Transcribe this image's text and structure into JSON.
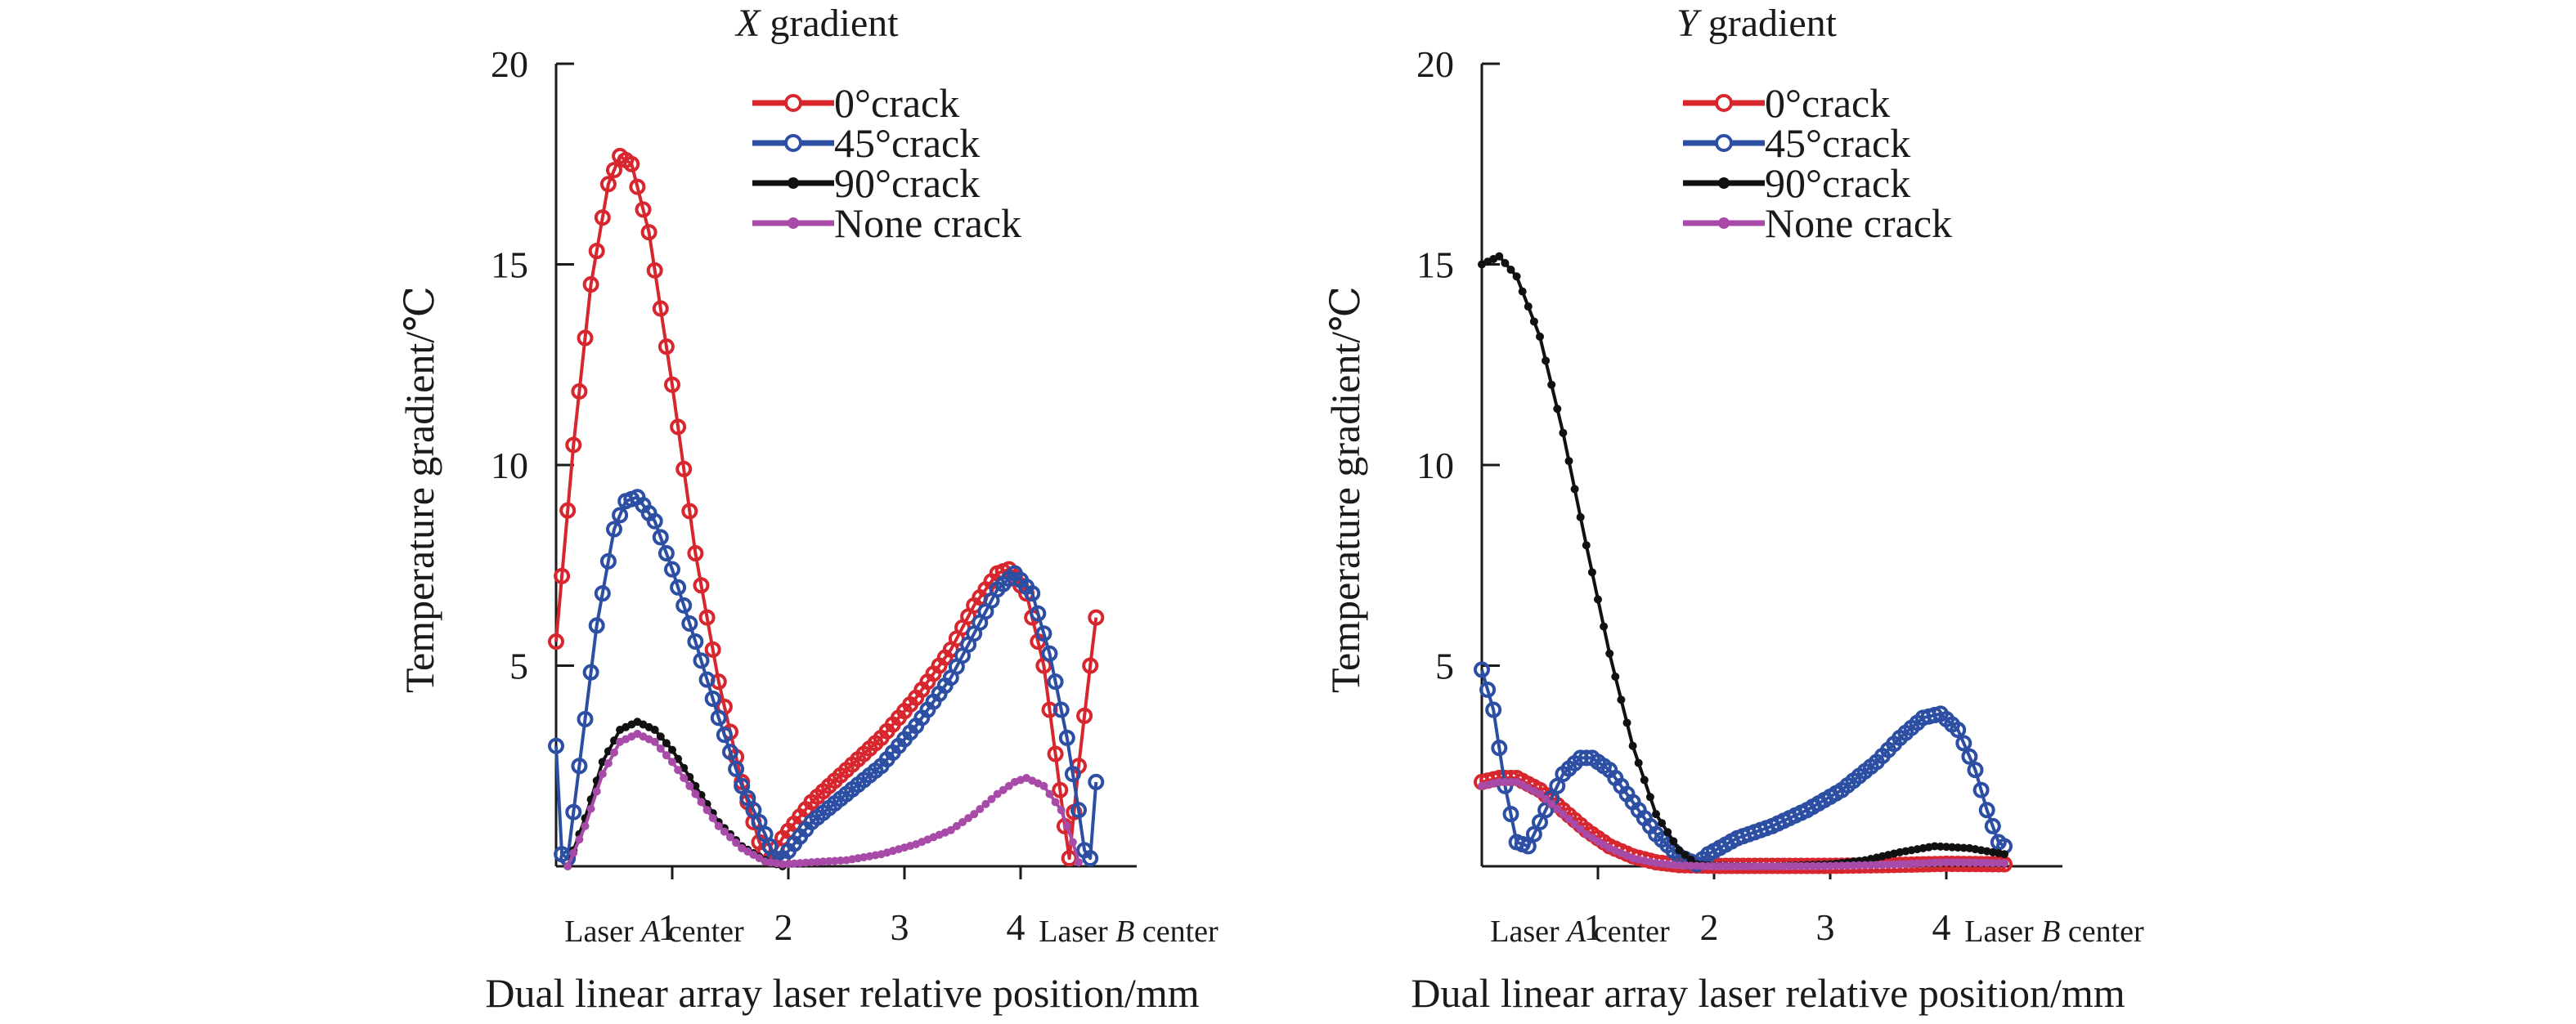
{
  "chart_data": [
    {
      "type": "line",
      "title_var": "X",
      "title_rest": " gradient",
      "xlabel": "Dual linear array laser relative position/mm",
      "ylabel": "Temperature gradient/℃",
      "xlim": [
        -0.05,
        5.0
      ],
      "ylim": [
        0,
        20
      ],
      "yticks": [
        5,
        10,
        15,
        20
      ],
      "xticks": [
        1,
        2,
        3,
        4
      ],
      "x_start_label": {
        "pre": "Laser ",
        "var": "A",
        "post": " center"
      },
      "x_end_label": {
        "pre": "Laser ",
        "var": "B",
        "post": " center"
      },
      "legend": [
        "0°crack",
        "45°crack",
        "90°crack",
        "None crack"
      ],
      "series": [
        {
          "name": "0°crack",
          "color": "#d7262e",
          "marker": "open-circle",
          "points": [
            [
              0,
              5.6
            ],
            [
              0.15,
              10.5
            ],
            [
              0.3,
              14.5
            ],
            [
              0.45,
              17.0
            ],
            [
              0.55,
              17.7
            ],
            [
              0.65,
              17.5
            ],
            [
              0.8,
              15.8
            ],
            [
              1.0,
              12.0
            ],
            [
              1.2,
              7.8
            ],
            [
              1.4,
              4.6
            ],
            [
              1.6,
              2.1
            ],
            [
              1.75,
              0.6
            ],
            [
              1.85,
              0.2
            ],
            [
              1.95,
              0.7
            ],
            [
              2.2,
              1.6
            ],
            [
              2.5,
              2.4
            ],
            [
              2.8,
              3.2
            ],
            [
              3.1,
              4.2
            ],
            [
              3.4,
              5.4
            ],
            [
              3.6,
              6.5
            ],
            [
              3.8,
              7.3
            ],
            [
              3.9,
              7.4
            ],
            [
              4.05,
              6.8
            ],
            [
              4.2,
              5.0
            ],
            [
              4.3,
              2.8
            ],
            [
              4.38,
              1.0
            ],
            [
              4.42,
              0.2
            ],
            [
              4.5,
              2.5
            ],
            [
              4.6,
              5.0
            ],
            [
              4.65,
              6.2
            ]
          ]
        },
        {
          "name": "45°crack",
          "color": "#2c4ea3",
          "marker": "open-circle",
          "points": [
            [
              0,
              3.0
            ],
            [
              0.05,
              0.3
            ],
            [
              0.1,
              0.2
            ],
            [
              0.2,
              2.5
            ],
            [
              0.35,
              6.0
            ],
            [
              0.5,
              8.4
            ],
            [
              0.6,
              9.1
            ],
            [
              0.7,
              9.2
            ],
            [
              0.85,
              8.6
            ],
            [
              1.0,
              7.4
            ],
            [
              1.2,
              5.6
            ],
            [
              1.4,
              3.7
            ],
            [
              1.6,
              2.0
            ],
            [
              1.8,
              0.8
            ],
            [
              1.88,
              0.2
            ],
            [
              1.95,
              0.2
            ],
            [
              2.2,
              1.1
            ],
            [
              2.5,
              1.8
            ],
            [
              2.8,
              2.5
            ],
            [
              3.1,
              3.5
            ],
            [
              3.4,
              4.7
            ],
            [
              3.6,
              5.8
            ],
            [
              3.8,
              6.9
            ],
            [
              3.95,
              7.3
            ],
            [
              4.1,
              6.8
            ],
            [
              4.25,
              5.3
            ],
            [
              4.4,
              3.2
            ],
            [
              4.5,
              1.4
            ],
            [
              4.55,
              0.4
            ],
            [
              4.6,
              0.2
            ],
            [
              4.65,
              2.1
            ]
          ]
        },
        {
          "name": "90°crack",
          "color": "#111111",
          "marker": "dot",
          "points": [
            [
              0.1,
              0
            ],
            [
              0.25,
              1.2
            ],
            [
              0.4,
              2.6
            ],
            [
              0.55,
              3.4
            ],
            [
              0.7,
              3.6
            ],
            [
              0.85,
              3.4
            ],
            [
              1.0,
              2.9
            ],
            [
              1.2,
              2.0
            ],
            [
              1.4,
              1.1
            ],
            [
              1.6,
              0.5
            ],
            [
              1.8,
              0.15
            ],
            [
              1.95,
              0
            ]
          ]
        },
        {
          "name": "None crack",
          "color": "#a84ba8",
          "marker": "dot",
          "points": [
            [
              0.1,
              0
            ],
            [
              0.25,
              1.0
            ],
            [
              0.4,
              2.3
            ],
            [
              0.55,
              3.1
            ],
            [
              0.7,
              3.3
            ],
            [
              0.85,
              3.1
            ],
            [
              1.0,
              2.6
            ],
            [
              1.2,
              1.8
            ],
            [
              1.4,
              1.0
            ],
            [
              1.6,
              0.45
            ],
            [
              1.8,
              0.12
            ],
            [
              1.95,
              0.05
            ],
            [
              2.2,
              0.1
            ],
            [
              2.5,
              0.15
            ],
            [
              2.8,
              0.3
            ],
            [
              3.1,
              0.55
            ],
            [
              3.4,
              0.9
            ],
            [
              3.6,
              1.3
            ],
            [
              3.8,
              1.8
            ],
            [
              3.95,
              2.1
            ],
            [
              4.05,
              2.2
            ],
            [
              4.2,
              2.0
            ],
            [
              4.35,
              1.4
            ],
            [
              4.45,
              0.6
            ],
            [
              4.5,
              0.1
            ]
          ]
        }
      ]
    },
    {
      "type": "line",
      "title_var": "Y",
      "title_rest": " gradient",
      "xlabel": "Dual linear array laser relative position/mm",
      "ylabel": "Temperature gradient/℃",
      "xlim": [
        -0.05,
        5.0
      ],
      "ylim": [
        0,
        20
      ],
      "yticks": [
        5,
        10,
        15,
        20
      ],
      "xticks": [
        1,
        2,
        3,
        4
      ],
      "x_start_label": {
        "pre": "Laser ",
        "var": "A",
        "post": " center"
      },
      "x_end_label": {
        "pre": "Laser ",
        "var": "B",
        "post": " center"
      },
      "legend": [
        "0°crack",
        "45°crack",
        "90°crack",
        "None crack"
      ],
      "series": [
        {
          "name": "0°crack",
          "color": "#d7262e",
          "marker": "open-circle",
          "points": [
            [
              0,
              2.1
            ],
            [
              0.15,
              2.2
            ],
            [
              0.3,
              2.2
            ],
            [
              0.5,
              1.9
            ],
            [
              0.7,
              1.4
            ],
            [
              0.9,
              0.9
            ],
            [
              1.1,
              0.5
            ],
            [
              1.3,
              0.25
            ],
            [
              1.5,
              0.1
            ],
            [
              1.7,
              0.03
            ],
            [
              2.0,
              0.01
            ],
            [
              2.5,
              0.01
            ],
            [
              3.0,
              0.01
            ],
            [
              3.5,
              0.03
            ],
            [
              4.0,
              0.06
            ],
            [
              4.5,
              0.05
            ]
          ]
        },
        {
          "name": "45°crack",
          "color": "#2c4ea3",
          "marker": "open-circle",
          "points": [
            [
              0,
              4.9
            ],
            [
              0.1,
              3.9
            ],
            [
              0.2,
              2.0
            ],
            [
              0.3,
              0.6
            ],
            [
              0.4,
              0.5
            ],
            [
              0.55,
              1.4
            ],
            [
              0.7,
              2.3
            ],
            [
              0.85,
              2.7
            ],
            [
              0.95,
              2.7
            ],
            [
              1.1,
              2.4
            ],
            [
              1.3,
              1.6
            ],
            [
              1.5,
              0.8
            ],
            [
              1.7,
              0.25
            ],
            [
              1.85,
              0.05
            ],
            [
              1.95,
              0.3
            ],
            [
              2.2,
              0.7
            ],
            [
              2.5,
              1.0
            ],
            [
              2.8,
              1.4
            ],
            [
              3.1,
              1.9
            ],
            [
              3.4,
              2.6
            ],
            [
              3.6,
              3.2
            ],
            [
              3.8,
              3.7
            ],
            [
              3.95,
              3.8
            ],
            [
              4.1,
              3.4
            ],
            [
              4.25,
              2.4
            ],
            [
              4.35,
              1.4
            ],
            [
              4.45,
              0.6
            ],
            [
              4.5,
              0.5
            ]
          ]
        },
        {
          "name": "90°crack",
          "color": "#111111",
          "marker": "dot",
          "points": [
            [
              0,
              15.0
            ],
            [
              0.15,
              15.2
            ],
            [
              0.3,
              14.7
            ],
            [
              0.5,
              13.2
            ],
            [
              0.7,
              10.8
            ],
            [
              0.9,
              8.0
            ],
            [
              1.1,
              5.3
            ],
            [
              1.3,
              3.0
            ],
            [
              1.5,
              1.3
            ],
            [
              1.7,
              0.4
            ],
            [
              1.85,
              0.05
            ],
            [
              2.0,
              0.01
            ],
            [
              2.5,
              0
            ],
            [
              3.0,
              0.05
            ],
            [
              3.3,
              0.15
            ],
            [
              3.6,
              0.35
            ],
            [
              3.9,
              0.5
            ],
            [
              4.2,
              0.45
            ],
            [
              4.5,
              0.3
            ]
          ]
        },
        {
          "name": "None crack",
          "color": "#a84ba8",
          "marker": "dot",
          "points": [
            [
              0,
              2.0
            ],
            [
              0.15,
              2.1
            ],
            [
              0.3,
              2.1
            ],
            [
              0.5,
              1.8
            ],
            [
              0.7,
              1.3
            ],
            [
              0.9,
              0.8
            ],
            [
              1.1,
              0.45
            ],
            [
              1.3,
              0.2
            ],
            [
              1.5,
              0.08
            ],
            [
              1.7,
              0.02
            ],
            [
              2.0,
              0
            ],
            [
              2.5,
              0
            ],
            [
              3.0,
              0.01
            ],
            [
              3.5,
              0.04
            ],
            [
              4.0,
              0.1
            ],
            [
              4.5,
              0.08
            ]
          ]
        }
      ]
    }
  ]
}
